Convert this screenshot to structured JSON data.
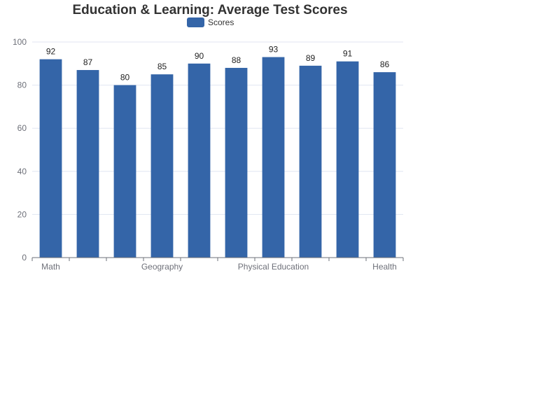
{
  "chart_data": {
    "type": "bar",
    "title": "Education & Learning: Average Test Scores",
    "categories": [
      "Math",
      "",
      "",
      "Geography",
      "",
      "",
      "Physical Education",
      "",
      "",
      "Health"
    ],
    "series": [
      {
        "name": "Scores",
        "values": [
          92,
          87,
          80,
          85,
          90,
          88,
          93,
          89,
          91,
          86
        ]
      }
    ],
    "xlabel": "",
    "ylabel": "",
    "ylim": [
      0,
      100
    ],
    "yticks": [
      0,
      20,
      40,
      60,
      80,
      100
    ],
    "grid": true,
    "legend_position": "top-center",
    "colors": {
      "bar": "#3465a8",
      "title": "#333333",
      "axis": "#6e7079",
      "grid": "#e0e6f1"
    }
  }
}
